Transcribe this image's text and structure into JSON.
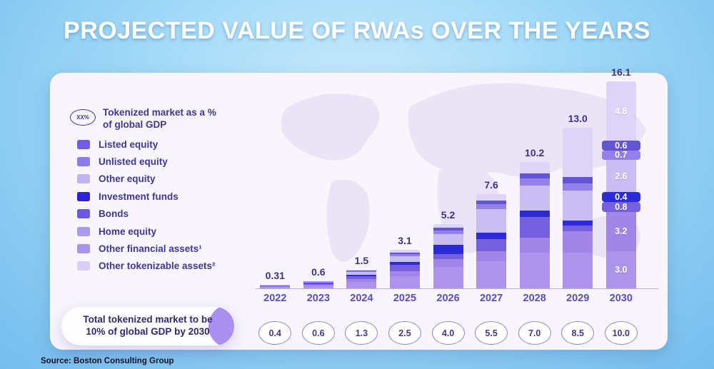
{
  "title": "PROJECTED VALUE OF RWAs OVER THE YEARS",
  "source": "Source: Boston Consulting Group",
  "legend": {
    "gdp_note": {
      "icon_label": "XX%",
      "text_line1": "Tokenized market as a %",
      "text_line2": "of global GDP"
    },
    "items": [
      {
        "key": "listed_equity",
        "label": "Listed equity",
        "color": "#6f5ee4"
      },
      {
        "key": "unlisted_equity",
        "label": "Unlisted equity",
        "color": "#8d7ce9"
      },
      {
        "key": "other_equity",
        "label": "Other equity",
        "color": "#c0b3f0"
      },
      {
        "key": "investment_funds",
        "label": "Investment funds",
        "color": "#2c22dc"
      },
      {
        "key": "bonds",
        "label": "Bonds",
        "color": "#6b59e0"
      },
      {
        "key": "home_equity",
        "label": "Home equity",
        "color": "#a99cee"
      },
      {
        "key": "other_financial_assets",
        "label": "Other financial assets¹",
        "color": "#a795ec"
      },
      {
        "key": "other_tokenizable_assets",
        "label": "Other tokenizable assets²",
        "color": "#d7d0f4"
      }
    ]
  },
  "callout": {
    "prefix": "Total ",
    "bold": "tokenized market to be 10% of global GDP",
    "suffix": " by 2030"
  },
  "chart_data": {
    "type": "bar",
    "stacked": true,
    "title": "PROJECTED VALUE OF RWAs OVER THE YEARS",
    "unit": "USD trillions",
    "categories": [
      "2022",
      "2023",
      "2024",
      "2025",
      "2026",
      "2027",
      "2028",
      "2029",
      "2030"
    ],
    "totals": [
      0.31,
      0.6,
      1.5,
      3.1,
      5.2,
      7.6,
      10.2,
      13.0,
      16.1
    ],
    "total_labels": [
      "0.31",
      "0.6",
      "1.5",
      "3.1",
      "5.2",
      "7.6",
      "10.2",
      "13.0",
      "16.1"
    ],
    "gdp_share_pct_labels": [
      "0.4",
      "0.6",
      "1.3",
      "2.5",
      "4.0",
      "5.5",
      "7.0",
      "8.5",
      "10.0"
    ],
    "stack_order_bottom_to_top": [
      "listed_equity",
      "home_equity",
      "bonds",
      "investment_funds",
      "unlisted_equity",
      "other_equity",
      "other_financial_assets",
      "other_tokenizable_assets"
    ],
    "series": [
      {
        "key": "listed_equity",
        "name": "Listed equity",
        "color": "#ac93ec",
        "values": [
          0.12,
          0.22,
          0.52,
          1.0,
          1.75,
          2.2,
          2.9,
          2.9,
          3.0
        ]
      },
      {
        "key": "home_equity",
        "name": "Home equity",
        "color": "#a186e8",
        "values": [
          0.05,
          0.09,
          0.22,
          0.4,
          0.6,
          0.8,
          1.2,
          1.7,
          3.2
        ]
      },
      {
        "key": "bonds",
        "name": "Bonds",
        "color": "#7560dd",
        "values": [
          0.05,
          0.1,
          0.24,
          0.5,
          0.45,
          1.0,
          1.7,
          0.5,
          0.8
        ]
      },
      {
        "key": "investment_funds",
        "name": "Investment funds",
        "color": "#2d2ad8",
        "values": [
          0.02,
          0.05,
          0.12,
          0.25,
          0.7,
          0.5,
          0.5,
          0.4,
          0.4
        ]
      },
      {
        "key": "unlisted_equity",
        "name": "Unlisted equity",
        "color": "#cabdf4",
        "values": [
          0.03,
          0.07,
          0.22,
          0.45,
          0.9,
          1.9,
          2.0,
          2.4,
          2.6
        ]
      },
      {
        "key": "other_equity",
        "name": "Other equity",
        "color": "#9380e8",
        "values": [
          0.01,
          0.03,
          0.08,
          0.2,
          0.3,
          0.4,
          0.6,
          0.6,
          0.7
        ]
      },
      {
        "key": "other_financial_assets",
        "name": "Other financial assets¹",
        "color": "#6355d2",
        "values": [
          0.01,
          0.02,
          0.05,
          0.1,
          0.2,
          0.3,
          0.4,
          0.5,
          0.6
        ]
      },
      {
        "key": "other_tokenizable_assets",
        "name": "Other tokenizable assets²",
        "color": "#ddd5f7",
        "values": [
          0.02,
          0.02,
          0.05,
          0.2,
          0.3,
          0.5,
          0.9,
          4.0,
          4.8
        ]
      }
    ],
    "segment_labels_2030": {
      "listed_equity": "3.0",
      "home_equity": "3.2",
      "bonds": "0.8",
      "investment_funds": "0.4",
      "unlisted_equity": "2.6",
      "other_equity": "0.7",
      "other_financial_assets": "0.6",
      "other_tokenizable_assets": "4.8"
    },
    "emphasized_2030_segments": [
      "bonds",
      "investment_funds",
      "other_equity",
      "other_financial_assets"
    ],
    "ylim": [
      0,
      16.5
    ],
    "grid": false,
    "legend_position": "left"
  }
}
